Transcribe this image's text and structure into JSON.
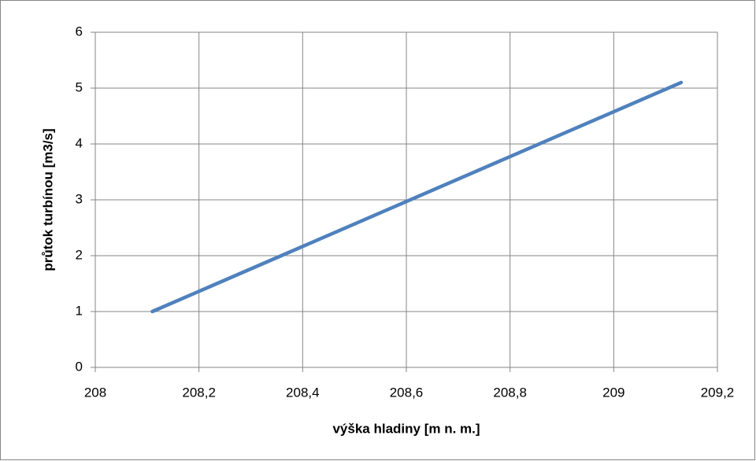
{
  "chart_data": {
    "type": "line",
    "xlabel": "výška hladiny [m n. m.]",
    "ylabel": "průtok turbínou [m3/s]",
    "x": [
      208.11,
      209.13
    ],
    "values": [
      1,
      5.1
    ],
    "color": "#4f81bd",
    "xlim": [
      208,
      209.2
    ],
    "xticks": [
      208,
      {
        "value": 208.2,
        "label": "208,2"
      },
      {
        "value": 208.4,
        "label": "208,4"
      },
      {
        "value": 208.6,
        "label": "208,6"
      },
      {
        "value": 208.8,
        "label": "208,8"
      },
      209,
      {
        "value": 209.2,
        "label": "209,2"
      }
    ],
    "ylim": [
      0,
      6
    ],
    "yticks": [
      0,
      1,
      2,
      3,
      4,
      5,
      6
    ],
    "grid": true
  }
}
